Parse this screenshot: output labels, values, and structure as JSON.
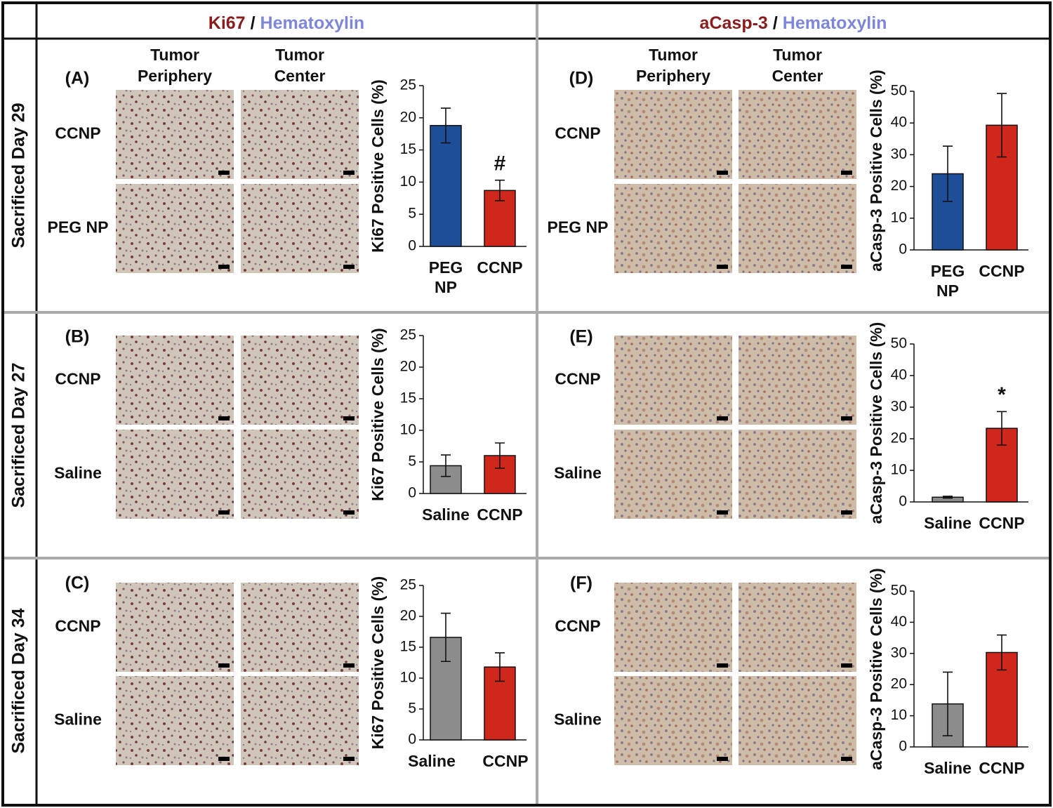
{
  "header": {
    "columns": [
      {
        "stain": "Ki67",
        "separator": "/",
        "counterstain": "Hematoxylin"
      },
      {
        "stain": "aCasp-3",
        "separator": "/",
        "counterstain": "Hematoxylin"
      }
    ]
  },
  "image_columns": [
    "Tumor Periphery",
    "Tumor Center"
  ],
  "rows": [
    {
      "label": "Sacrificed Day 29",
      "panels": [
        {
          "letter": "(A)",
          "image_rows": [
            "CCNP",
            "PEG NP"
          ]
        },
        {
          "letter": "(D)",
          "image_rows": [
            "CCNP",
            "PEG NP"
          ]
        }
      ]
    },
    {
      "label": "Sacrificed Day 27",
      "panels": [
        {
          "letter": "(B)",
          "image_rows": [
            "CCNP",
            "Saline"
          ]
        },
        {
          "letter": "(E)",
          "image_rows": [
            "CCNP",
            "Saline"
          ]
        }
      ]
    },
    {
      "label": "Sacrificed Day 34",
      "panels": [
        {
          "letter": "(C)",
          "image_rows": [
            "CCNP",
            "Saline"
          ]
        },
        {
          "letter": "(F)",
          "image_rows": [
            "CCNP",
            "Saline"
          ]
        }
      ]
    }
  ],
  "chart_data": [
    {
      "type": "bar",
      "ylabel": "Ki67 Positive Cells (%)",
      "categories": [
        "PEG NP",
        "CCNP"
      ],
      "values": [
        18.8,
        8.7
      ],
      "errors": [
        2.7,
        1.6
      ],
      "colors": [
        "#1f4e99",
        "#d0271d"
      ],
      "ylim": [
        0,
        25
      ],
      "yticks": [
        0,
        5,
        10,
        15,
        20,
        25
      ],
      "annotation": {
        "category": "CCNP",
        "text": "#"
      }
    },
    {
      "type": "bar",
      "ylabel": "aCasp-3 Positive Cells (%)",
      "categories": [
        "PEG NP",
        "CCNP"
      ],
      "values": [
        24,
        39.3
      ],
      "errors": [
        8.7,
        10
      ],
      "colors": [
        "#1f4e99",
        "#d0271d"
      ],
      "ylim": [
        0,
        50
      ],
      "yticks": [
        0,
        10,
        20,
        30,
        40,
        50
      ]
    },
    {
      "type": "bar",
      "ylabel": "Ki67 Positive Cells (%)",
      "categories": [
        "Saline",
        "CCNP"
      ],
      "values": [
        4.4,
        6.0
      ],
      "errors": [
        1.7,
        2.0
      ],
      "colors": [
        "#8c8c8c",
        "#d0271d"
      ],
      "ylim": [
        0,
        25
      ],
      "yticks": [
        0,
        5,
        10,
        15,
        20,
        25
      ]
    },
    {
      "type": "bar",
      "ylabel": "aCasp-3 Positive Cells (%)",
      "categories": [
        "Saline",
        "CCNP"
      ],
      "values": [
        1.5,
        23.3
      ],
      "errors": [
        0.3,
        5.3
      ],
      "colors": [
        "#8c8c8c",
        "#d0271d"
      ],
      "ylim": [
        0,
        50
      ],
      "yticks": [
        0,
        10,
        20,
        30,
        40,
        50
      ],
      "annotation": {
        "category": "CCNP",
        "text": "*"
      }
    },
    {
      "type": "bar",
      "ylabel": "Ki67 Positive Cells (%)",
      "categories": [
        "Saline",
        "CCNP"
      ],
      "values": [
        16.6,
        11.8
      ],
      "errors": [
        3.9,
        2.3
      ],
      "colors": [
        "#8c8c8c",
        "#d0271d"
      ],
      "ylim": [
        0,
        25
      ],
      "yticks": [
        0,
        5,
        10,
        15,
        20,
        25
      ]
    },
    {
      "type": "bar",
      "ylabel": "aCasp-3 Positive Cells (%)",
      "categories": [
        "Saline",
        "CCNP"
      ],
      "values": [
        13.8,
        30.3
      ],
      "errors": [
        10.2,
        5.6
      ],
      "colors": [
        "#8c8c8c",
        "#d0271d"
      ],
      "ylim": [
        0,
        50
      ],
      "yticks": [
        0,
        10,
        20,
        30,
        40,
        50
      ]
    }
  ]
}
